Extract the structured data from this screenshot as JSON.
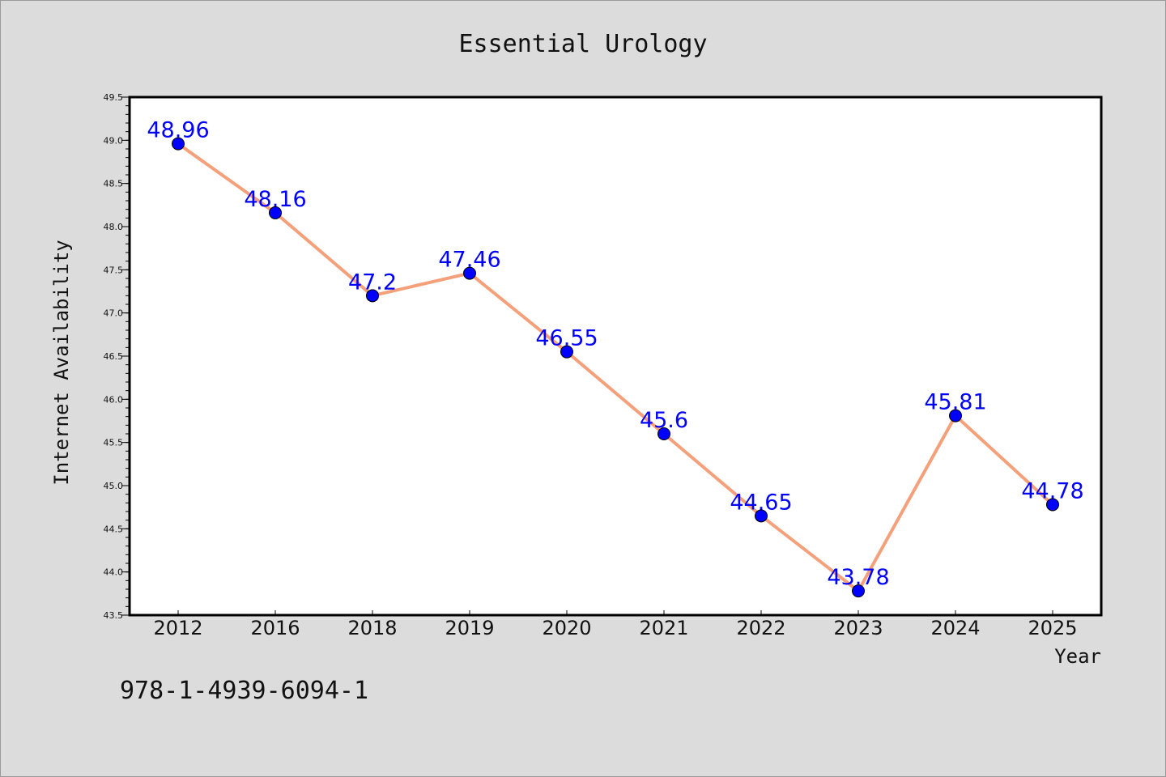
{
  "chart_data": {
    "type": "line",
    "title": "Essential Urology",
    "xlabel": "Year",
    "ylabel": "Internet Availability",
    "categories": [
      "2012",
      "2016",
      "2018",
      "2019",
      "2020",
      "2021",
      "2022",
      "2023",
      "2024",
      "2025"
    ],
    "values": [
      48.96,
      48.16,
      47.2,
      47.46,
      46.55,
      45.6,
      44.65,
      43.78,
      45.81,
      44.78
    ],
    "data_labels": [
      "48.96",
      "48.16",
      "47.2",
      "47.46",
      "46.55",
      "45.6",
      "44.65",
      "43.78",
      "45.81",
      "44.78"
    ],
    "ylim": [
      43.5,
      49.5
    ],
    "yticks": [
      "43.5",
      "44.0",
      "44.5",
      "45.0",
      "45.5",
      "46.0",
      "46.5",
      "47.0",
      "47.5",
      "48.0",
      "48.5",
      "49.0",
      "49.5"
    ],
    "grid": false,
    "line_color": "#f4a07a",
    "marker_color": "#0000ff",
    "label_color": "#0000ff"
  },
  "footer": {
    "isbn": "978-1-4939-6094-1"
  }
}
